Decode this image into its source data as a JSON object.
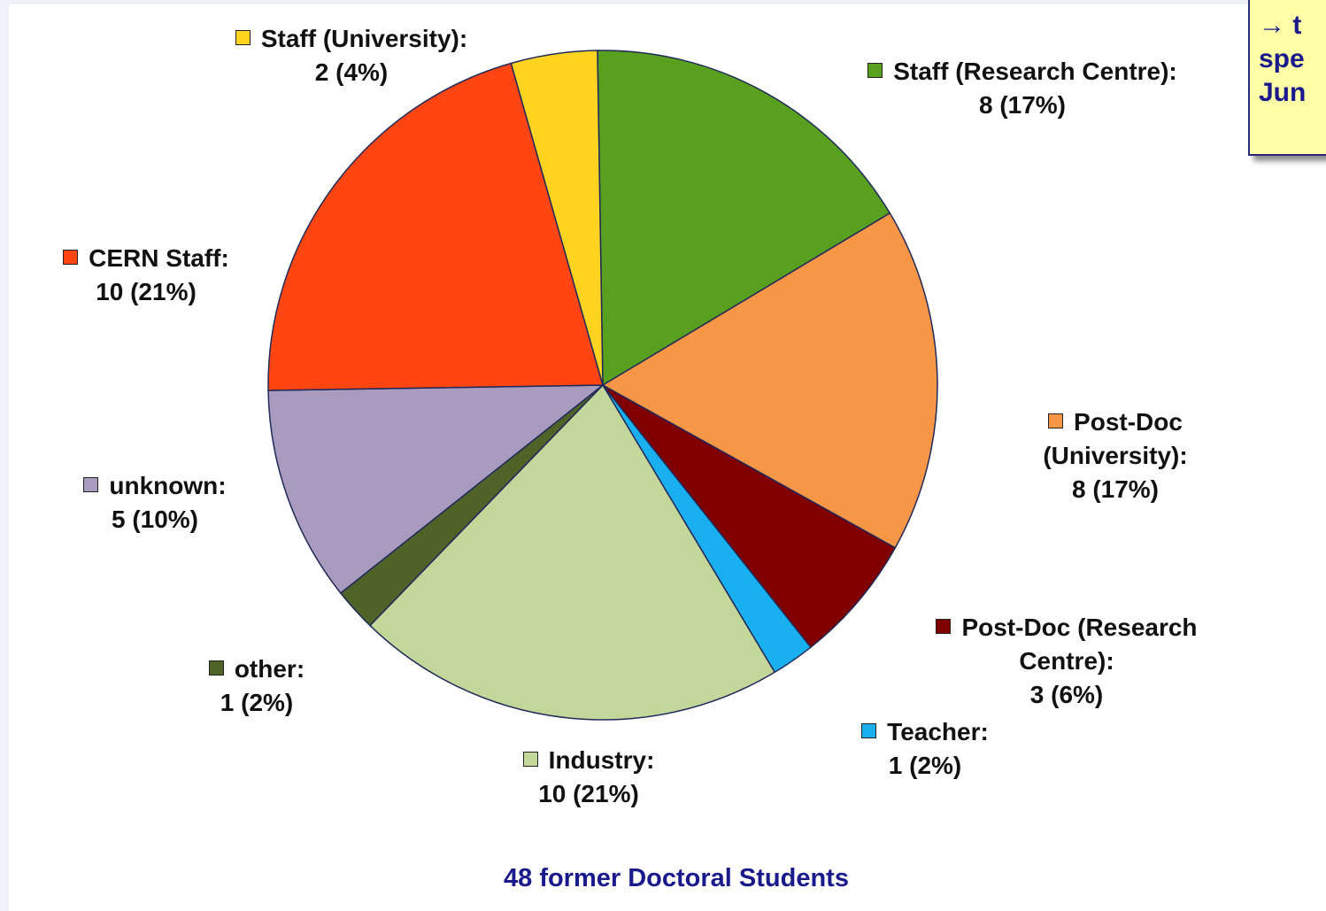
{
  "chart_data": {
    "type": "pie",
    "title": "48 former Doctoral Students",
    "categories": [
      "Staff (Research Centre):",
      "Post-Doc (University):",
      "Post-Doc (Research Centre):",
      "Teacher:",
      "Industry:",
      "other:",
      "unknown:",
      "CERN Staff:",
      "Staff (University):"
    ],
    "values": [
      8,
      8,
      3,
      1,
      10,
      1,
      5,
      10,
      2
    ],
    "value_labels": [
      "8 (17%)",
      "8 (17%)",
      "3 (6%)",
      "1 (2%)",
      "10 (21%)",
      "1 (2%)",
      "5 (10%)",
      "10 (21%)",
      "2 (4%)"
    ],
    "colors": [
      "#58a01e",
      "#f79646",
      "#800000",
      "#1ab0f0",
      "#c4d79b",
      "#4f6228",
      "#a99bbd",
      "#ff4512",
      "#ffd320"
    ]
  },
  "note": {
    "lines": [
      "→ t",
      "spe",
      "Jun"
    ]
  }
}
